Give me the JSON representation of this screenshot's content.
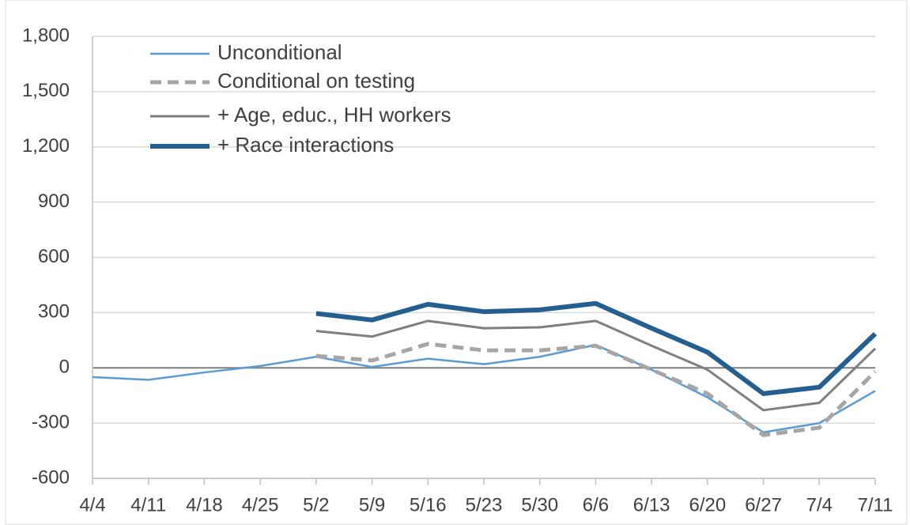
{
  "chart_data": {
    "type": "line",
    "categories": [
      "4/4",
      "4/11",
      "4/18",
      "4/25",
      "5/2",
      "5/9",
      "5/16",
      "5/23",
      "5/30",
      "6/6",
      "6/13",
      "6/20",
      "6/27",
      "7/4",
      "7/11"
    ],
    "series": [
      {
        "name": "Unconditional",
        "color": "#5b9bd5",
        "style": "solid",
        "width": 2.5,
        "values": [
          -50,
          -65,
          -25,
          10,
          60,
          5,
          50,
          20,
          60,
          125,
          -10,
          -160,
          -350,
          -300,
          -125
        ]
      },
      {
        "name": "Conditional on testing",
        "color": "#a6a6a6",
        "style": "dashed",
        "width": 5,
        "values": [
          null,
          null,
          null,
          null,
          65,
          40,
          130,
          95,
          95,
          120,
          -10,
          -140,
          -365,
          -325,
          -20
        ]
      },
      {
        "name": "+ Age, educ., HH workers",
        "color": "#7f7f7f",
        "style": "solid",
        "width": 3,
        "values": [
          null,
          null,
          null,
          null,
          200,
          170,
          255,
          215,
          220,
          255,
          120,
          -10,
          -230,
          -190,
          105
        ]
      },
      {
        "name": "+ Race interactions",
        "color": "#255e91",
        "style": "solid",
        "width": 6,
        "values": [
          null,
          null,
          null,
          null,
          295,
          260,
          345,
          305,
          315,
          350,
          215,
          85,
          -140,
          -105,
          185
        ]
      }
    ],
    "ylim": [
      -600,
      1800
    ],
    "yticks": [
      -600,
      -300,
      0,
      300,
      600,
      900,
      {
        "value": 1200,
        "label": "1,200"
      },
      {
        "value": 1500,
        "label": "1,500"
      },
      {
        "value": 1800,
        "label": "1,800"
      }
    ],
    "grid": true,
    "legend": "top-left"
  }
}
